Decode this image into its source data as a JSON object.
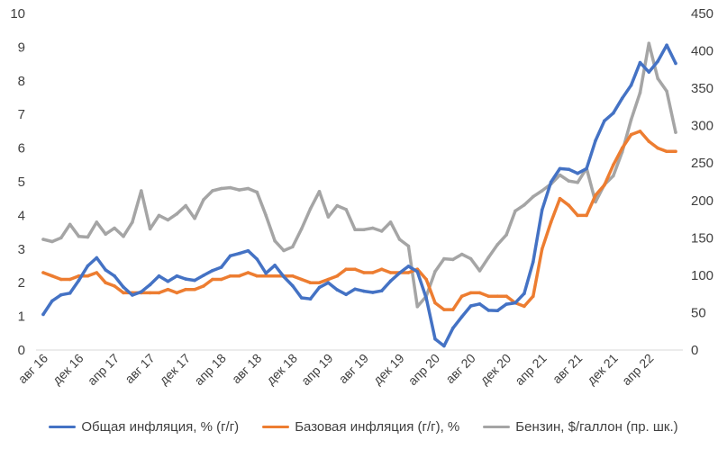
{
  "chart_data": {
    "type": "line",
    "grid": false,
    "legend_position": "bottom",
    "y_left": {
      "min": 0,
      "max": 10,
      "ticks": [
        "0",
        "1",
        "2",
        "3",
        "4",
        "5",
        "6",
        "7",
        "8",
        "9",
        "10"
      ]
    },
    "y_right": {
      "min": 0,
      "max": 450,
      "ticks": [
        "0",
        "50",
        "100",
        "150",
        "200",
        "250",
        "300",
        "350",
        "400",
        "450"
      ]
    },
    "x_tick_labels": [
      {
        "index": 0,
        "label": "авг 16"
      },
      {
        "index": 4,
        "label": "дек 16"
      },
      {
        "index": 8,
        "label": "апр 17"
      },
      {
        "index": 12,
        "label": "авг 17"
      },
      {
        "index": 16,
        "label": "дек 17"
      },
      {
        "index": 20,
        "label": "апр 18"
      },
      {
        "index": 24,
        "label": "авг 18"
      },
      {
        "index": 28,
        "label": "дек 18"
      },
      {
        "index": 32,
        "label": "апр 19"
      },
      {
        "index": 36,
        "label": "авг 19"
      },
      {
        "index": 40,
        "label": "дек 19"
      },
      {
        "index": 44,
        "label": "апр 20"
      },
      {
        "index": 48,
        "label": "авг 20"
      },
      {
        "index": 52,
        "label": "дек 20"
      },
      {
        "index": 56,
        "label": "апр 21"
      },
      {
        "index": 60,
        "label": "авг 21"
      },
      {
        "index": 64,
        "label": "дек 21"
      },
      {
        "index": 68,
        "label": "апр 22"
      }
    ],
    "series": [
      {
        "name": "Общая инфляция, % (г/г)",
        "color": "#4472C4",
        "axis": "left",
        "values": [
          1.06,
          1.46,
          1.64,
          1.69,
          2.07,
          2.5,
          2.74,
          2.38,
          2.2,
          1.87,
          1.63,
          1.73,
          1.94,
          2.2,
          2.04,
          2.2,
          2.11,
          2.07,
          2.22,
          2.36,
          2.46,
          2.8,
          2.87,
          2.95,
          2.7,
          2.28,
          2.52,
          2.18,
          1.91,
          1.55,
          1.52,
          1.86,
          2.0,
          1.79,
          1.65,
          1.81,
          1.75,
          1.71,
          1.76,
          2.05,
          2.29,
          2.49,
          2.33,
          1.54,
          0.33,
          0.12,
          0.65,
          0.99,
          1.31,
          1.37,
          1.18,
          1.17,
          1.36,
          1.4,
          1.68,
          2.62,
          4.16,
          4.99,
          5.39,
          5.37,
          5.25,
          5.39,
          6.22,
          6.81,
          7.04,
          7.48,
          7.87,
          8.54,
          8.26,
          8.58,
          9.06,
          8.52
        ]
      },
      {
        "name": "Базовая инфляция (г/г), %",
        "color": "#ED7D31",
        "axis": "left",
        "values": [
          2.3,
          2.2,
          2.1,
          2.1,
          2.2,
          2.2,
          2.3,
          2.0,
          1.9,
          1.7,
          1.7,
          1.7,
          1.7,
          1.7,
          1.8,
          1.7,
          1.8,
          1.8,
          1.9,
          2.1,
          2.1,
          2.2,
          2.2,
          2.3,
          2.2,
          2.2,
          2.2,
          2.2,
          2.2,
          2.1,
          2.0,
          2.0,
          2.1,
          2.2,
          2.4,
          2.4,
          2.3,
          2.3,
          2.4,
          2.3,
          2.3,
          2.3,
          2.4,
          2.1,
          1.4,
          1.2,
          1.2,
          1.6,
          1.7,
          1.7,
          1.6,
          1.6,
          1.6,
          1.4,
          1.3,
          1.6,
          3.0,
          3.8,
          4.5,
          4.3,
          4.0,
          4.0,
          4.6,
          4.9,
          5.5,
          6.0,
          6.4,
          6.5,
          6.2,
          6.0,
          5.9,
          5.9
        ]
      },
      {
        "name": "Бензин, $/галлон (пр. шк.)",
        "color": "#A5A5A5",
        "axis": "right",
        "values": [
          148,
          145,
          150,
          168,
          152,
          151,
          171,
          155,
          163,
          152,
          171,
          213,
          162,
          180,
          174,
          182,
          193,
          176,
          201,
          213,
          216,
          217,
          214,
          216,
          211,
          180,
          146,
          133,
          138,
          162,
          189,
          212,
          178,
          193,
          188,
          161,
          161,
          163,
          159,
          171,
          148,
          139,
          58,
          72,
          105,
          122,
          121,
          128,
          122,
          106,
          124,
          141,
          154,
          186,
          194,
          205,
          213,
          222,
          234,
          226,
          224,
          243,
          198,
          221,
          233,
          265,
          308,
          344,
          410,
          363,
          346,
          291
        ]
      }
    ]
  }
}
